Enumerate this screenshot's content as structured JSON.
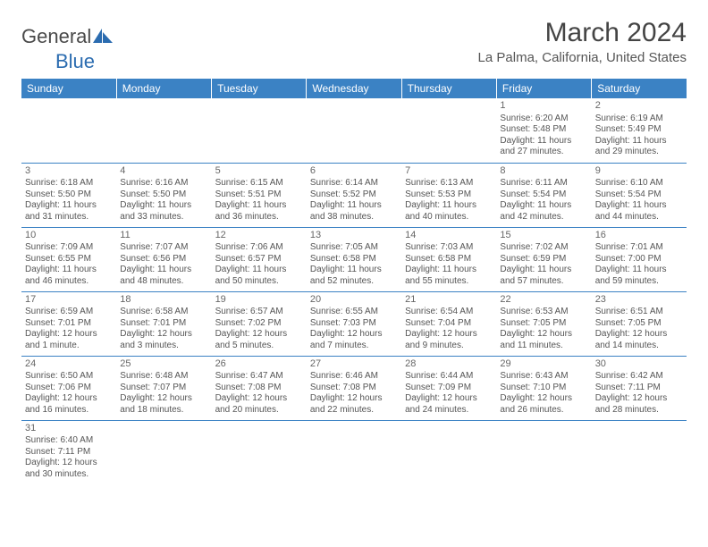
{
  "logo": {
    "textA": "General",
    "textB": "Blue"
  },
  "title": "March 2024",
  "location": "La Palma, California, United States",
  "weekday_headers": [
    "Sunday",
    "Monday",
    "Tuesday",
    "Wednesday",
    "Thursday",
    "Friday",
    "Saturday"
  ],
  "theme": {
    "header_bg": "#3b82c4",
    "header_fg": "#ffffff",
    "grid_line": "#3b82c4",
    "page_bg": "#ffffff",
    "text": "#555555"
  },
  "weeks": [
    [
      null,
      null,
      null,
      null,
      null,
      {
        "n": "1",
        "sr": "6:20 AM",
        "ss": "5:48 PM",
        "dl": "11 hours and 27 minutes."
      },
      {
        "n": "2",
        "sr": "6:19 AM",
        "ss": "5:49 PM",
        "dl": "11 hours and 29 minutes."
      }
    ],
    [
      {
        "n": "3",
        "sr": "6:18 AM",
        "ss": "5:50 PM",
        "dl": "11 hours and 31 minutes."
      },
      {
        "n": "4",
        "sr": "6:16 AM",
        "ss": "5:50 PM",
        "dl": "11 hours and 33 minutes."
      },
      {
        "n": "5",
        "sr": "6:15 AM",
        "ss": "5:51 PM",
        "dl": "11 hours and 36 minutes."
      },
      {
        "n": "6",
        "sr": "6:14 AM",
        "ss": "5:52 PM",
        "dl": "11 hours and 38 minutes."
      },
      {
        "n": "7",
        "sr": "6:13 AM",
        "ss": "5:53 PM",
        "dl": "11 hours and 40 minutes."
      },
      {
        "n": "8",
        "sr": "6:11 AM",
        "ss": "5:54 PM",
        "dl": "11 hours and 42 minutes."
      },
      {
        "n": "9",
        "sr": "6:10 AM",
        "ss": "5:54 PM",
        "dl": "11 hours and 44 minutes."
      }
    ],
    [
      {
        "n": "10",
        "sr": "7:09 AM",
        "ss": "6:55 PM",
        "dl": "11 hours and 46 minutes."
      },
      {
        "n": "11",
        "sr": "7:07 AM",
        "ss": "6:56 PM",
        "dl": "11 hours and 48 minutes."
      },
      {
        "n": "12",
        "sr": "7:06 AM",
        "ss": "6:57 PM",
        "dl": "11 hours and 50 minutes."
      },
      {
        "n": "13",
        "sr": "7:05 AM",
        "ss": "6:58 PM",
        "dl": "11 hours and 52 minutes."
      },
      {
        "n": "14",
        "sr": "7:03 AM",
        "ss": "6:58 PM",
        "dl": "11 hours and 55 minutes."
      },
      {
        "n": "15",
        "sr": "7:02 AM",
        "ss": "6:59 PM",
        "dl": "11 hours and 57 minutes."
      },
      {
        "n": "16",
        "sr": "7:01 AM",
        "ss": "7:00 PM",
        "dl": "11 hours and 59 minutes."
      }
    ],
    [
      {
        "n": "17",
        "sr": "6:59 AM",
        "ss": "7:01 PM",
        "dl": "12 hours and 1 minute."
      },
      {
        "n": "18",
        "sr": "6:58 AM",
        "ss": "7:01 PM",
        "dl": "12 hours and 3 minutes."
      },
      {
        "n": "19",
        "sr": "6:57 AM",
        "ss": "7:02 PM",
        "dl": "12 hours and 5 minutes."
      },
      {
        "n": "20",
        "sr": "6:55 AM",
        "ss": "7:03 PM",
        "dl": "12 hours and 7 minutes."
      },
      {
        "n": "21",
        "sr": "6:54 AM",
        "ss": "7:04 PM",
        "dl": "12 hours and 9 minutes."
      },
      {
        "n": "22",
        "sr": "6:53 AM",
        "ss": "7:05 PM",
        "dl": "12 hours and 11 minutes."
      },
      {
        "n": "23",
        "sr": "6:51 AM",
        "ss": "7:05 PM",
        "dl": "12 hours and 14 minutes."
      }
    ],
    [
      {
        "n": "24",
        "sr": "6:50 AM",
        "ss": "7:06 PM",
        "dl": "12 hours and 16 minutes."
      },
      {
        "n": "25",
        "sr": "6:48 AM",
        "ss": "7:07 PM",
        "dl": "12 hours and 18 minutes."
      },
      {
        "n": "26",
        "sr": "6:47 AM",
        "ss": "7:08 PM",
        "dl": "12 hours and 20 minutes."
      },
      {
        "n": "27",
        "sr": "6:46 AM",
        "ss": "7:08 PM",
        "dl": "12 hours and 22 minutes."
      },
      {
        "n": "28",
        "sr": "6:44 AM",
        "ss": "7:09 PM",
        "dl": "12 hours and 24 minutes."
      },
      {
        "n": "29",
        "sr": "6:43 AM",
        "ss": "7:10 PM",
        "dl": "12 hours and 26 minutes."
      },
      {
        "n": "30",
        "sr": "6:42 AM",
        "ss": "7:11 PM",
        "dl": "12 hours and 28 minutes."
      }
    ],
    [
      {
        "n": "31",
        "sr": "6:40 AM",
        "ss": "7:11 PM",
        "dl": "12 hours and 30 minutes."
      },
      null,
      null,
      null,
      null,
      null,
      null
    ]
  ],
  "labels": {
    "sunrise": "Sunrise: ",
    "sunset": "Sunset: ",
    "daylight": "Daylight: "
  }
}
